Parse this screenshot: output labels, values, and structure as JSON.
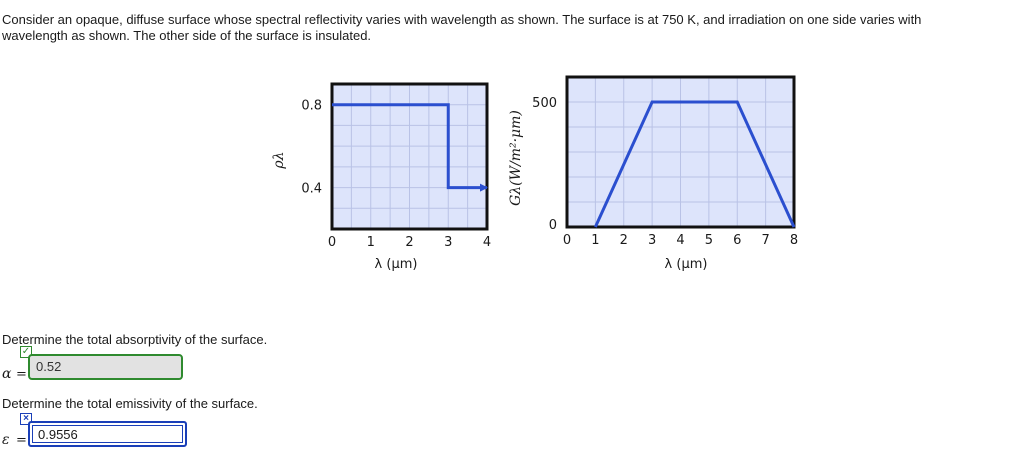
{
  "problem": {
    "line1": "Consider an opaque, diffuse surface whose spectral reflectivity varies with wavelength as shown. The surface is at 750 K, and irradiation on one side varies with",
    "line2": "wavelength as shown. The other side of the surface is insulated."
  },
  "chart_data": [
    {
      "type": "line",
      "ylabel": "ρλ",
      "xlabel": "λ (μm)",
      "xlim": [
        0,
        4
      ],
      "ylim": [
        0.2,
        0.9
      ],
      "x_ticks": [
        "0",
        "1",
        "2",
        "3",
        "4"
      ],
      "y_ticks": [
        "0.8",
        "0.4"
      ],
      "grid": true,
      "series": [
        {
          "x": [
            0,
            3,
            3,
            4
          ],
          "y": [
            0.8,
            0.8,
            0.4,
            0.4
          ]
        }
      ],
      "annotations": [
        "arrow at the end of the line at λ = 4 μm"
      ]
    },
    {
      "type": "line",
      "ylabel": "Gλ(W/m²·μm)",
      "xlabel": "λ (μm)",
      "xlim": [
        0,
        8
      ],
      "ylim": [
        0,
        600
      ],
      "x_ticks": [
        "0",
        "1",
        "2",
        "3",
        "4",
        "5",
        "6",
        "7",
        "8"
      ],
      "y_ticks": [
        "500",
        "0"
      ],
      "grid": true,
      "series": [
        {
          "x": [
            1,
            3,
            6,
            8
          ],
          "y": [
            0,
            500,
            500,
            0
          ]
        }
      ]
    }
  ],
  "questions": {
    "q1": "Determine the total absorptivity of the surface.",
    "q2": "Determine the total emissivity of the surface."
  },
  "answers": {
    "alpha_symbol": "α",
    "epsilon_symbol": "ε",
    "equals": "=",
    "alpha_value": "0.52",
    "epsilon_value": "0.9556",
    "check_mark": "✓",
    "cross_mark": "×"
  },
  "colors": {
    "plot_bg": "#dde4fb",
    "line": "#2b4fcf",
    "correct": "#2f8a2f",
    "incorrect": "#1a3fb8"
  }
}
